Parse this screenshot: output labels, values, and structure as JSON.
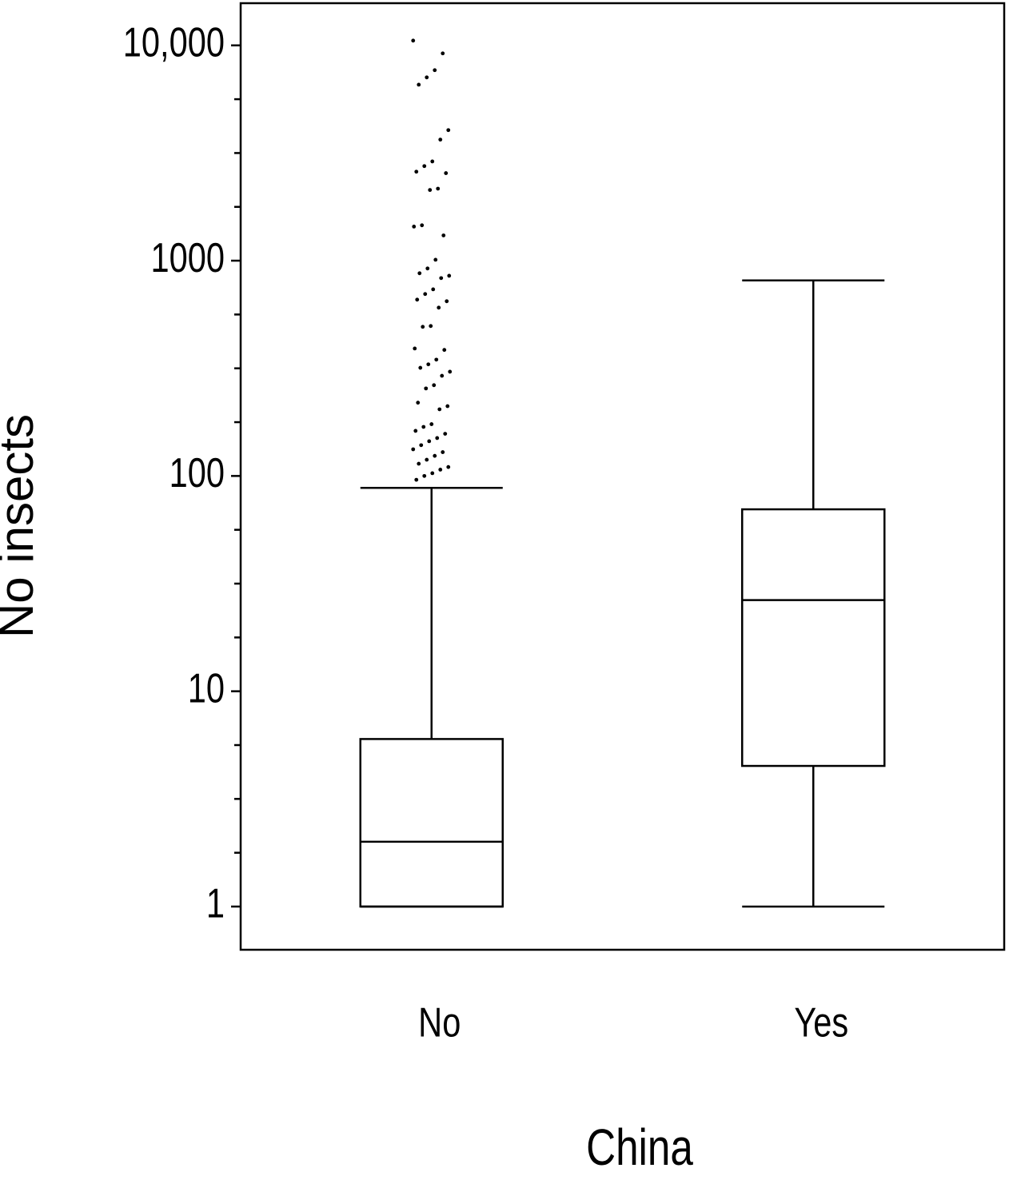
{
  "chart_data": {
    "type": "box",
    "ylabel": "No insects",
    "xlabel": "China",
    "log": true,
    "ylim": [
      0.63,
      15700
    ],
    "yticks": [
      1,
      10,
      100,
      1000,
      {
        "value": 10000,
        "label": "10,000"
      }
    ],
    "minor_yticks": [
      1.778,
      3.162,
      5.623,
      17.78,
      31.62,
      56.23,
      177.8,
      316.2,
      562.3,
      1778,
      3162,
      5623
    ],
    "categories": [
      "No",
      "Yes"
    ],
    "whislo": [
      1,
      1
    ],
    "q1": [
      1,
      4.5
    ],
    "med": [
      2,
      26.5
    ],
    "q3": [
      6,
      70
    ],
    "whishi": [
      88,
      810
    ],
    "fliers": [
      [
        10520,
        9180,
        7670,
        7100,
        6570,
        4040,
        3650,
        2890,
        2750,
        2590,
        2550,
        2160,
        2130,
        1460,
        1440,
        1310,
        1010,
        920,
        874,
        851,
        830,
        736,
        700,
        659,
        648,
        605,
        497,
        493,
        391,
        385,
        347,
        330,
        318,
        305,
        292,
        264,
        255,
        219,
        211,
        204,
        174,
        169,
        162,
        157,
        150,
        145,
        139,
        133,
        129,
        124,
        119,
        114,
        110,
        107,
        103,
        100,
        96
      ],
      []
    ],
    "color": "#000000"
  }
}
